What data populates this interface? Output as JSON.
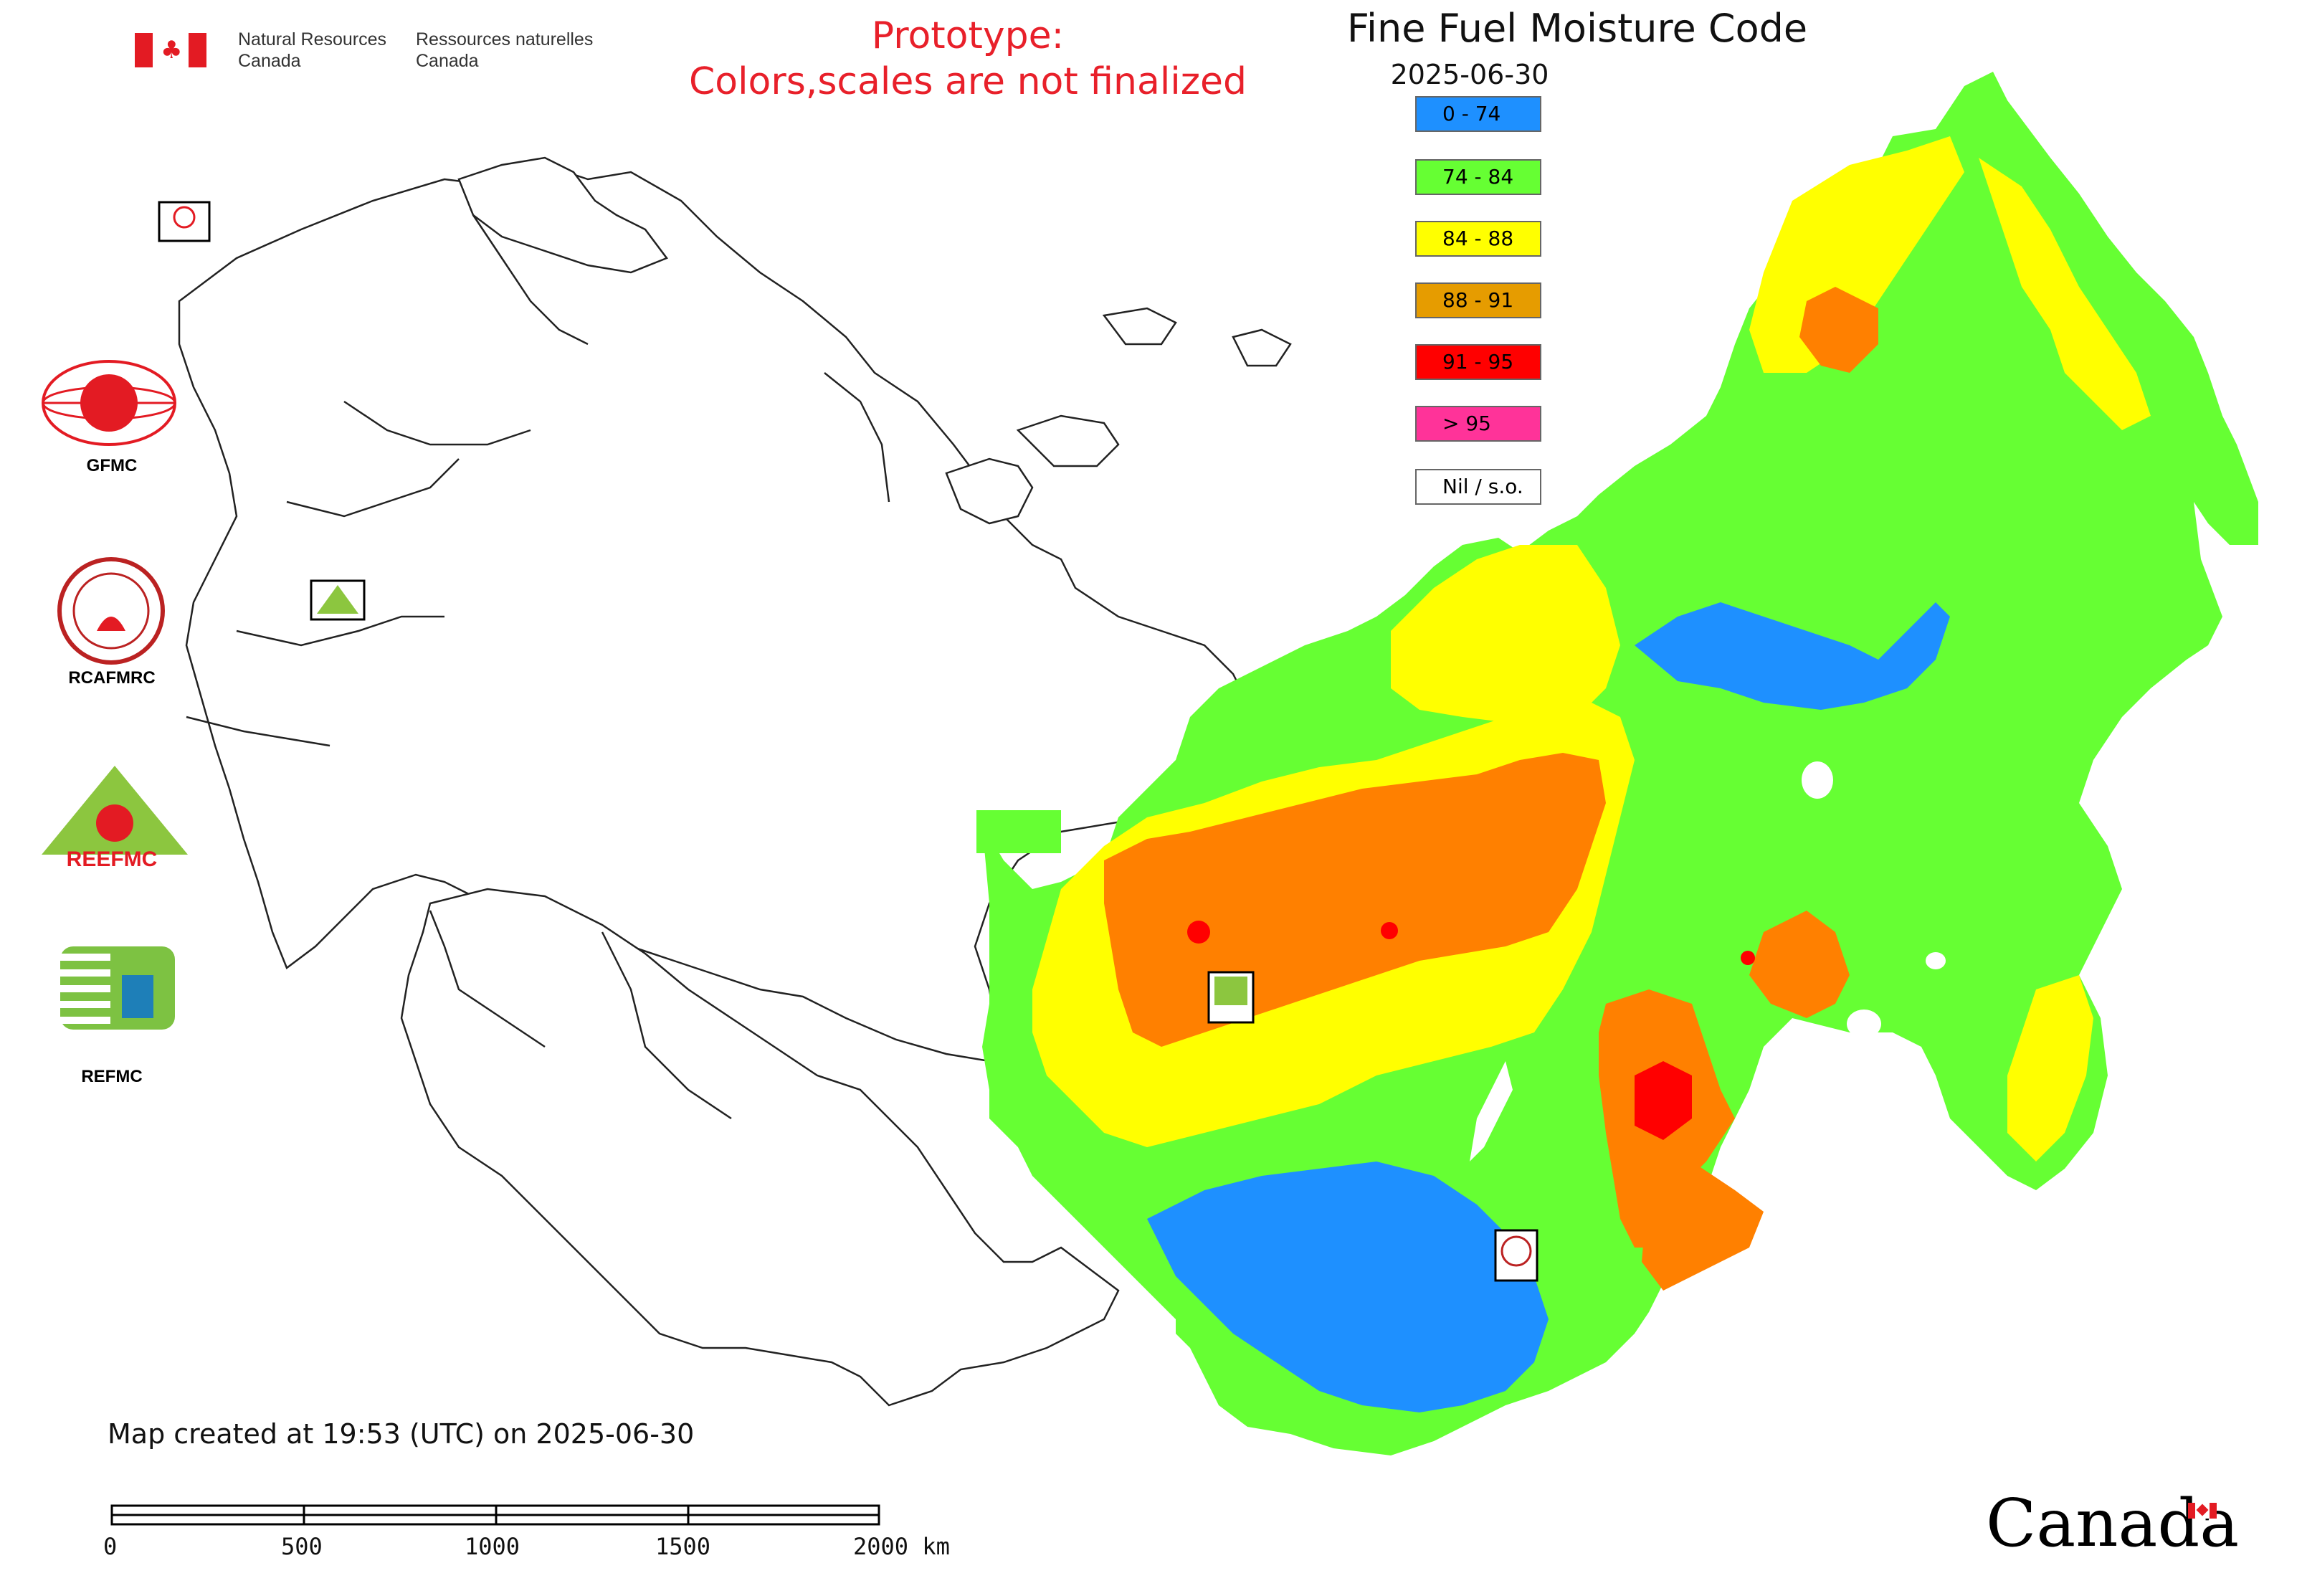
{
  "header": {
    "agency_en_line1": "Natural Resources",
    "agency_en_line2": "Canada",
    "agency_fr_line1": "Ressources naturelles",
    "agency_fr_line2": "Canada"
  },
  "prototype_notice": {
    "line1": "Prototype:",
    "line2": "Colors,scales are not finalized"
  },
  "map": {
    "title": "Fine Fuel Moisture Code",
    "date": "2025-06-30"
  },
  "legend": {
    "items": [
      {
        "label": "0 - 74",
        "color": "#1e90ff"
      },
      {
        "label": "74 - 84",
        "color": "#66ff33"
      },
      {
        "label": "84 - 88",
        "color": "#ffff00"
      },
      {
        "label": "88 - 91",
        "color": "#e69c00"
      },
      {
        "label": "91 - 95",
        "color": "#ff0000"
      },
      {
        "label": "> 95",
        "color": "#ff3399"
      },
      {
        "label": "Nil / s.o.",
        "color": "#ffffff"
      }
    ]
  },
  "side_logos": [
    {
      "label": "GFMC",
      "icon": "gfmc-logo-icon"
    },
    {
      "label": "RCAFMRC",
      "icon": "rcafmrc-logo-icon"
    },
    {
      "label": "",
      "icon": "reefmc-logo-icon",
      "wordmark": "REEFMC"
    },
    {
      "label": "REFMC",
      "icon": "refmc-logo-icon"
    }
  ],
  "map_markers": [
    {
      "icon": "gfmc-marker-icon",
      "label": "GFMC"
    },
    {
      "icon": "reefmc-marker-icon",
      "label": "REEFMC"
    },
    {
      "icon": "refmc-marker-icon",
      "label": "REFMC"
    },
    {
      "icon": "rcafmrc-marker-icon",
      "label": "RCAFMRC"
    }
  ],
  "footer": {
    "map_created": "Map created at 19:53 (UTC) on 2025-06-30",
    "scale_ticks": [
      "0",
      "500",
      "1000",
      "1500",
      "2000 km"
    ],
    "wordmark": "Canada"
  },
  "colors": {
    "low": "#1e90ff",
    "moderate": "#66ff33",
    "high": "#ffff00",
    "very_high": "#ff8000",
    "extreme": "#ff0000",
    "notice": "#e8202a"
  }
}
